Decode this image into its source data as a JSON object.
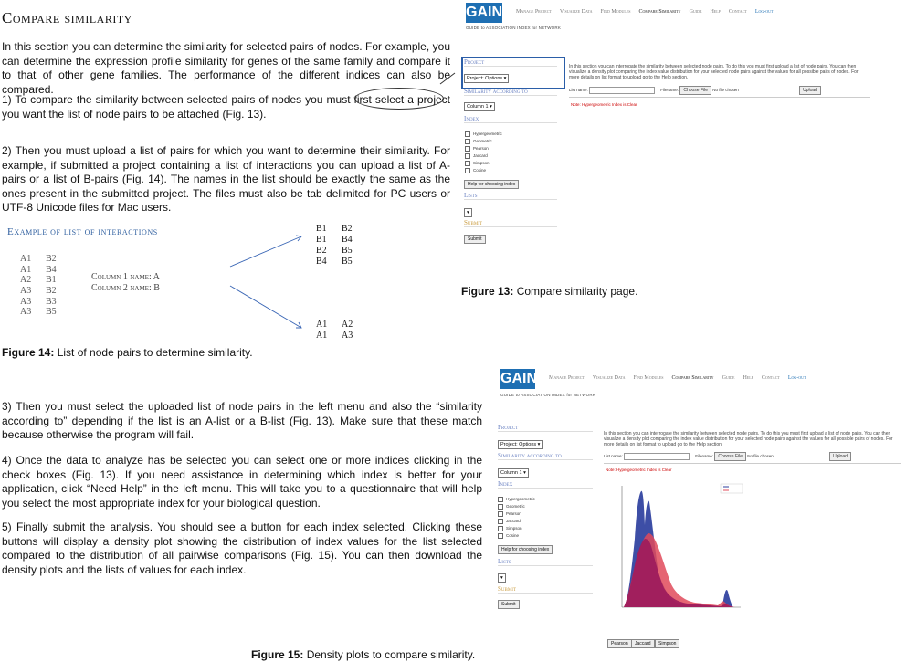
{
  "doc": {
    "title": "Compare similarity",
    "intro": "In this section  you can determine the similarity for selected pairs of nodes. For example, you can determine the expression profile similarity for genes of the same family and compare it to that of other gene families. The performance of the different indices can also be compared.",
    "step1": "1) To compare the similarity between selected pairs of nodes you must first select a project you want the list of node pairs to be attached (Fig. 13).",
    "step2": "2) Then you must upload a list of pairs for which you want to determine their similarity. For example, if  submitted a project containing a list of interactions you can upload a list of A-pairs or a list of B-pairs  (Fig. 14). The names in the list should be exactly the same as the ones present in the submitted project. The files must also be tab delimited for PC users or UTF-8 Unicode files for Mac users.",
    "step3": "3) Then you must select the uploaded list of node pairs in the left menu and also the “similarity according to” depending if the list is an A-list or a B-list (Fig. 13). Make sure that these match because otherwise the program will fail.",
    "step4": "4) Once the data to analyze has be selected you can select one or more indices clicking in the check boxes (Fig. 13). If you need assistance in determining which index is better for your application, click “Need Help” in the left menu. This will take you to a questionnaire that will help you select the most appropriate index for your biological question.",
    "step5": "5) Finally submit the analysis. You should see a button for each index selected. Clicking these buttons will display a density plot showing the distribution of index values for the list selected compared to the distribution of all pairwise comparisons (Fig. 15). You can then download the density plots and the lists of values for each index.",
    "fig13_label": "Figure 13:",
    "fig13_text": " Compare similarity page.",
    "fig14_label": "Figure 14:",
    "fig14_text": " List of node pairs to determine similarity.",
    "fig15_label": "Figure 15:",
    "fig15_text": " Density plots to compare similarity."
  },
  "example": {
    "title": "Example of list of interactions",
    "col1": [
      "A1",
      "A1",
      "A2",
      "A3",
      "A3",
      "A3"
    ],
    "col2": [
      "B2",
      "B4",
      "B1",
      "B2",
      "B3",
      "B5"
    ],
    "col1_name": "Column 1 name: A",
    "col2_name": "Column 2 name: B",
    "b_pairs_left": [
      "B1",
      "B1",
      "B2",
      "B4"
    ],
    "b_pairs_right": [
      "B2",
      "B4",
      "B5",
      "B5"
    ],
    "a_pairs_left": [
      "A1",
      "A1"
    ],
    "a_pairs_right": [
      "A2",
      "A3"
    ]
  },
  "app": {
    "logo": "GAIN",
    "logo_sub": "GUIDE to ASSOCIATION INDEX for NETWORK",
    "nav": [
      "Manage Project",
      "Visualize Data",
      "Find Modules",
      "Compare Similarity",
      "Guide",
      "Help",
      "Contact",
      "Log-out"
    ],
    "project_heading": "Project",
    "project_select": "Project: Options",
    "similarity_heading": "Similarity according to",
    "column_select": "Column 1",
    "index_heading": "Index",
    "indices": [
      "Hypergeometric",
      "Geometric",
      "Pearson",
      "Jaccard",
      "Simpson",
      "Cosine"
    ],
    "help_button": "Help for choosing index",
    "lists_heading": "Lists",
    "submit_heading": "Submit",
    "submit_button": "Submit",
    "info_text": "In this section you can interrogate the similarity between selected node pairs. To do this you must first upload a list of node pairs. You can then visualize a density plot comparing the index value distribution for your selected node pairs against the values for all possible pairs of nodes. For more details on list format to upload go to the Help section.",
    "list_name_label": "List name:",
    "filename_label": "Filename:",
    "choose_file": "Choose File",
    "no_file": "No file chosen",
    "upload": "Upload",
    "note13": "Note: Hypergeometric Index is Clear",
    "note15": "Note: Hypergeometric Index is Clear",
    "plot_buttons": [
      "Pearson",
      "Jaccard",
      "Simpson"
    ]
  },
  "colors": {
    "accent": "#1e6fb3",
    "heading": "#6b82c2",
    "density_blue": "#2c3f9e",
    "density_red": "#e04a5a",
    "density_overlap": "#9c1b5c"
  }
}
